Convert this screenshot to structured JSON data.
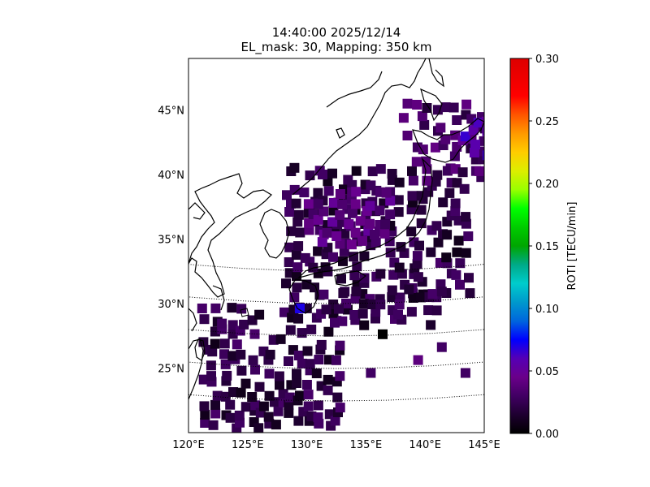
{
  "chart_data": {
    "type": "heatmap",
    "title": "14:40:00 2025/12/14",
    "subtitle": "EL_mask: 30, Mapping: 350 km",
    "projection": "conic",
    "lon_range": [
      120,
      145
    ],
    "lat_range": [
      20,
      49
    ],
    "lon_ticks": [
      "120°E",
      "125°E",
      "130°E",
      "135°E",
      "140°E",
      "145°E"
    ],
    "lat_ticks": [
      "25°N",
      "30°N",
      "35°N",
      "40°N",
      "45°N"
    ],
    "lon_tick_values": [
      120,
      125,
      130,
      135,
      140,
      145
    ],
    "lat_tick_values": [
      25,
      30,
      35,
      40,
      45
    ],
    "grid": true,
    "colorbar": {
      "label": "ROTI [TECU/min]",
      "min": 0.0,
      "max": 0.3,
      "ticks": [
        "0.00",
        "0.05",
        "0.10",
        "0.15",
        "0.20",
        "0.25",
        "0.30"
      ],
      "tick_values": [
        0,
        0.05,
        0.1,
        0.15,
        0.2,
        0.25,
        0.3
      ],
      "colormap": "nipy_spectral"
    },
    "regions": [
      {
        "lon": [
          128,
          144
        ],
        "lat": [
          31,
          41
        ],
        "roti": 0.02
      },
      {
        "lon": [
          132,
          141
        ],
        "lat": [
          29,
          32
        ],
        "roti": 0.02
      },
      {
        "lon": [
          138,
          145
        ],
        "lat": [
          40,
          46
        ],
        "roti": 0.03
      },
      {
        "lon": [
          121,
          133
        ],
        "lat": [
          21,
          30
        ],
        "roti": 0.02
      },
      {
        "lon": [
          130,
          137
        ],
        "lat": [
          35,
          39
        ],
        "roti": 0.04
      },
      {
        "lon": [
          143,
          145
        ],
        "lat": [
          42,
          45
        ],
        "roti": 0.06
      }
    ],
    "scatter_cells": [
      {
        "lon": 136,
        "lat": 28,
        "roti": 0.0
      },
      {
        "lon": 127,
        "lat": 21,
        "roti": 0.01
      },
      {
        "lon": 129,
        "lat": 30,
        "roti": 0.07
      },
      {
        "lon": 135,
        "lat": 25,
        "roti": 0.03
      },
      {
        "lon": 139,
        "lat": 26,
        "roti": 0.04
      },
      {
        "lon": 141,
        "lat": 27,
        "roti": 0.03
      },
      {
        "lon": 143,
        "lat": 25,
        "roti": 0.03
      }
    ]
  }
}
